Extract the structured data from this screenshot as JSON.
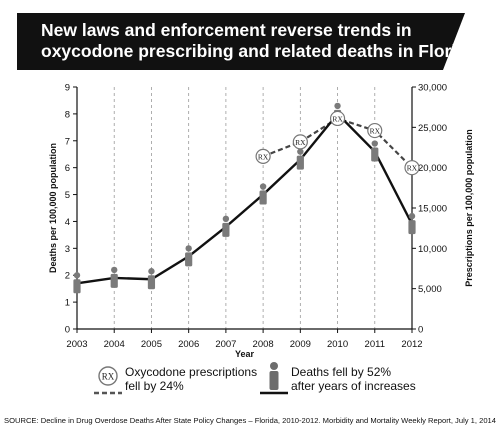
{
  "title_lines": [
    "New laws and enforcement reverse trends in",
    "oxycodone prescribing and related deaths in Florida"
  ],
  "chart_data": {
    "type": "line",
    "title": "New laws and enforcement reverse trends in oxycodone prescribing and related deaths in Florida",
    "xlabel": "Year",
    "ylabel": "Deaths per 100,000 population",
    "y2label": "Prescriptions per 100,000 population",
    "categories": [
      "2003",
      "2004",
      "2005",
      "2006",
      "2007",
      "2008",
      "2009",
      "2010",
      "2011",
      "2012"
    ],
    "ylim": [
      0,
      9
    ],
    "y2lim": [
      0,
      30000
    ],
    "yticks": [
      "0",
      "1",
      "2",
      "3",
      "4",
      "5",
      "6",
      "7",
      "8",
      "9"
    ],
    "y2ticks": [
      "0",
      "5,000",
      "10,000",
      "15,000",
      "20,000",
      "25,000",
      "30,000"
    ],
    "grid": "vertical dashed lines at each year",
    "series": [
      {
        "name": "Deaths fell by 52% after years of increases",
        "axis": "left",
        "style": "solid",
        "marker": "person-icon",
        "x": [
          "2003",
          "2004",
          "2005",
          "2006",
          "2007",
          "2008",
          "2009",
          "2010",
          "2011",
          "2012"
        ],
        "values": [
          1.7,
          1.9,
          1.85,
          2.7,
          3.8,
          5.0,
          6.3,
          8.0,
          6.6,
          3.9
        ]
      },
      {
        "name": "Oxycodone prescriptions fell by 24%",
        "axis": "right",
        "style": "dashed",
        "marker": "rx-icon",
        "x": [
          "2008",
          "2009",
          "2010",
          "2011",
          "2012"
        ],
        "values": [
          21400,
          23200,
          26100,
          24600,
          20000
        ]
      }
    ],
    "legend_position": "bottom",
    "colors": {
      "line": "#111111",
      "marker": "#7a7a7a",
      "grid": "#9a9a9a",
      "banner": "#111111"
    }
  },
  "legend": {
    "rx_symbol": "RX",
    "rx_label_lines": [
      "Oxycodone prescriptions",
      "fell by 24%"
    ],
    "deaths_label_lines": [
      "Deaths fell by 52%",
      "after years of increases"
    ]
  },
  "source": "SOURCE: Decline in Drug Overdose Deaths After State Policy Changes – Florida, 2010-2012. Morbidity and Mortality Weekly Report, July 1, 2014"
}
